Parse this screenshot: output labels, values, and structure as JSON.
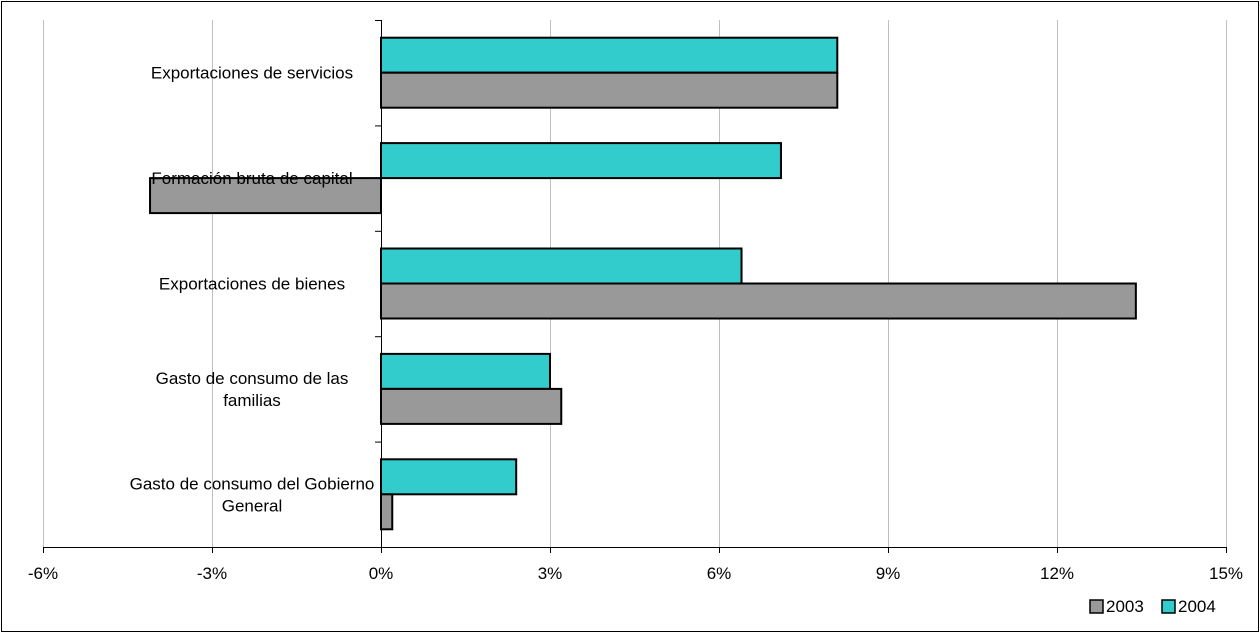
{
  "chart_data": {
    "type": "bar",
    "orientation": "horizontal",
    "categories": [
      "Exportaciones de servicios",
      "Formación bruta de capital",
      "Exportaciones de bienes",
      "Gasto de consumo de las familias",
      "Gasto de consumo del Gobierno General"
    ],
    "category_lines": [
      [
        "Exportaciones de servicios"
      ],
      [
        "Formación bruta de capital"
      ],
      [
        "Exportaciones de bienes"
      ],
      [
        "Gasto de consumo de las",
        "familias"
      ],
      [
        "Gasto de consumo del Gobierno",
        "General"
      ]
    ],
    "series": [
      {
        "name": "2003",
        "color": "#999999",
        "values": [
          8.1,
          -4.1,
          13.4,
          3.2,
          0.2
        ]
      },
      {
        "name": "2004",
        "color": "#33CCCC",
        "values": [
          8.1,
          7.1,
          6.4,
          3.0,
          2.4
        ]
      }
    ],
    "xlim": [
      -6,
      15
    ],
    "x_ticks": [
      -6,
      -3,
      0,
      3,
      6,
      9,
      12,
      15
    ],
    "x_tick_labels": [
      "-6%",
      "-3%",
      "0%",
      "3%",
      "6%",
      "9%",
      "12%",
      "15%"
    ],
    "grid": "vertical",
    "legend": "bottom-right",
    "title": "",
    "xlabel": "",
    "ylabel": ""
  }
}
